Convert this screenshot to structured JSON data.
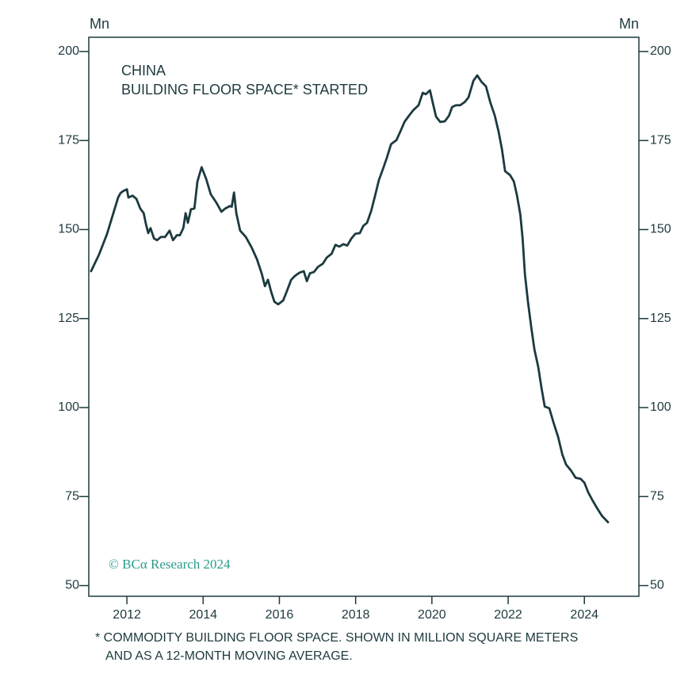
{
  "chart_data": {
    "type": "line",
    "title": "CHINA",
    "subtitle": "BUILDING FLOOR SPACE* STARTED",
    "y_label": "Mn",
    "y2_label": "Mn",
    "source": "© BCα Research 2024",
    "footnote": [
      "*  COMMODITY BUILDING FLOOR SPACE. SHOWN IN MILLION SQUARE METERS",
      "AND AS A 12-MONTH MOVING AVERAGE."
    ],
    "color": "#1c3a3f",
    "xlim": [
      2011,
      2025.43
    ],
    "xticks": [
      2012,
      2014,
      2016,
      2018,
      2020,
      2022,
      2024
    ],
    "ylim": [
      47,
      204
    ],
    "yticks": [
      50,
      75,
      100,
      125,
      150,
      175,
      200
    ],
    "y2lim": [
      47,
      204
    ],
    "y2ticks": [
      50,
      75,
      100,
      125,
      150,
      175,
      200
    ],
    "grid": false,
    "x": [
      2011.06,
      2011.27,
      2011.48,
      2011.65,
      2011.77,
      2011.83,
      2011.9,
      2012.0,
      2012.04,
      2012.15,
      2012.25,
      2012.35,
      2012.44,
      2012.5,
      2012.56,
      2012.62,
      2012.71,
      2012.79,
      2012.89,
      2013.0,
      2013.12,
      2013.21,
      2013.31,
      2013.39,
      2013.48,
      2013.54,
      2013.6,
      2013.68,
      2013.77,
      2013.85,
      2013.96,
      2014.08,
      2014.2,
      2014.35,
      2014.48,
      2014.58,
      2014.7,
      2014.75,
      2014.81,
      2014.87,
      2014.97,
      2015.12,
      2015.27,
      2015.41,
      2015.54,
      2015.62,
      2015.7,
      2015.79,
      2015.87,
      2015.97,
      2016.1,
      2016.2,
      2016.31,
      2016.41,
      2016.53,
      2016.64,
      2016.72,
      2016.8,
      2016.91,
      2017.01,
      2017.14,
      2017.24,
      2017.37,
      2017.47,
      2017.57,
      2017.68,
      2017.78,
      2017.89,
      2017.99,
      2018.11,
      2018.2,
      2018.3,
      2018.41,
      2018.51,
      2018.61,
      2018.72,
      2018.82,
      2018.93,
      2019.07,
      2019.18,
      2019.28,
      2019.38,
      2019.51,
      2019.65,
      2019.76,
      2019.84,
      2019.95,
      2020.03,
      2020.11,
      2020.22,
      2020.34,
      2020.45,
      2020.53,
      2020.63,
      2020.74,
      2020.86,
      2020.96,
      2021.09,
      2021.19,
      2021.3,
      2021.42,
      2021.53,
      2021.65,
      2021.75,
      2021.84,
      2021.92,
      2022.05,
      2022.15,
      2022.23,
      2022.32,
      2022.38,
      2022.44,
      2022.52,
      2022.61,
      2022.69,
      2022.79,
      2022.88,
      2022.96,
      2023.08,
      2023.19,
      2023.31,
      2023.42,
      2023.52,
      2023.65,
      2023.77,
      2023.9,
      2024.0,
      2024.1,
      2024.21,
      2024.33,
      2024.46,
      2024.62
    ],
    "values": [
      138.3,
      143,
      148.8,
      154.8,
      159,
      160.2,
      160.8,
      161.3,
      159,
      159.5,
      158.6,
      155.9,
      154.6,
      151.5,
      149,
      150.4,
      147.5,
      147,
      147.9,
      147.9,
      149.7,
      147,
      148.4,
      148.4,
      150.4,
      154.6,
      151.9,
      155.7,
      155.9,
      163.5,
      167.5,
      164.2,
      159.9,
      157.5,
      155,
      155.9,
      156.6,
      156.4,
      160.4,
      154.6,
      149.7,
      147.9,
      145,
      141.7,
      137.5,
      134.1,
      135.9,
      132.3,
      129.7,
      129,
      130.1,
      132.8,
      135.9,
      137,
      137.9,
      138.3,
      135.5,
      137.7,
      138.1,
      139.5,
      140.4,
      142.1,
      143.2,
      145.7,
      145.2,
      145.9,
      145.5,
      147.5,
      148.8,
      149,
      151,
      151.9,
      155.3,
      159.5,
      163.9,
      167.1,
      170.2,
      174,
      175.1,
      177.7,
      180.2,
      181.7,
      183.5,
      184.9,
      188.4,
      188,
      189.1,
      185.3,
      181.7,
      180.2,
      180.4,
      182,
      184.4,
      184.9,
      184.9,
      185.8,
      187.1,
      191.8,
      193.3,
      191.5,
      190.2,
      185.8,
      182,
      177.5,
      172.4,
      166.4,
      165.3,
      163.5,
      159.7,
      154.2,
      147.5,
      137.5,
      129.7,
      122.3,
      116.3,
      111.4,
      105.2,
      100.3,
      99.8,
      95.8,
      91.8,
      86.9,
      84,
      82.3,
      80.3,
      80,
      78.9,
      76.2,
      74,
      71.8,
      69.6,
      67.8
    ]
  }
}
